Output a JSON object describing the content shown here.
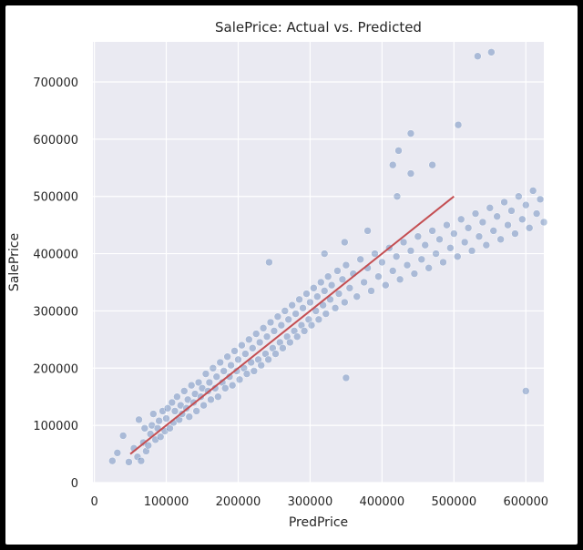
{
  "chart_data": {
    "type": "scatter",
    "title": "SalePrice: Actual vs. Predicted",
    "xlabel": "PredPrice",
    "ylabel": "SalePrice",
    "xlim": [
      -2000,
      625000
    ],
    "ylim": [
      0,
      770000
    ],
    "xticks": [
      0,
      100000,
      200000,
      300000,
      400000,
      500000,
      600000
    ],
    "yticks": [
      0,
      100000,
      200000,
      300000,
      400000,
      500000,
      600000,
      700000
    ],
    "xtick_labels": [
      "0",
      "100000",
      "200000",
      "300000",
      "400000",
      "500000",
      "600000"
    ],
    "ytick_labels": [
      "0",
      "100000",
      "200000",
      "300000",
      "400000",
      "500000",
      "600000",
      "700000"
    ],
    "grid": true,
    "background": "#eaeaf2",
    "point_color": "#4c72b0",
    "line_color": "#c44e52",
    "reference_line": {
      "x": [
        50000,
        500000
      ],
      "y": [
        50000,
        500000
      ]
    },
    "series": [
      {
        "points": [
          [
            25000,
            38000
          ],
          [
            32000,
            52000
          ],
          [
            40000,
            82000
          ],
          [
            48000,
            36000
          ],
          [
            55000,
            60000
          ],
          [
            60000,
            45000
          ],
          [
            62000,
            110000
          ],
          [
            65000,
            38000
          ],
          [
            68000,
            70000
          ],
          [
            70000,
            95000
          ],
          [
            72000,
            55000
          ],
          [
            75000,
            65000
          ],
          [
            78000,
            85000
          ],
          [
            80000,
            100000
          ],
          [
            82000,
            120000
          ],
          [
            85000,
            75000
          ],
          [
            88000,
            95000
          ],
          [
            90000,
            108000
          ],
          [
            92000,
            80000
          ],
          [
            95000,
            125000
          ],
          [
            98000,
            90000
          ],
          [
            100000,
            112000
          ],
          [
            102000,
            130000
          ],
          [
            105000,
            95000
          ],
          [
            108000,
            140000
          ],
          [
            110000,
            105000
          ],
          [
            112000,
            125000
          ],
          [
            115000,
            150000
          ],
          [
            118000,
            110000
          ],
          [
            120000,
            135000
          ],
          [
            122000,
            120000
          ],
          [
            125000,
            160000
          ],
          [
            128000,
            130000
          ],
          [
            130000,
            145000
          ],
          [
            132000,
            115000
          ],
          [
            135000,
            170000
          ],
          [
            138000,
            140000
          ],
          [
            140000,
            155000
          ],
          [
            142000,
            125000
          ],
          [
            145000,
            175000
          ],
          [
            148000,
            150000
          ],
          [
            150000,
            165000
          ],
          [
            152000,
            135000
          ],
          [
            155000,
            190000
          ],
          [
            158000,
            160000
          ],
          [
            160000,
            175000
          ],
          [
            162000,
            145000
          ],
          [
            165000,
            200000
          ],
          [
            168000,
            165000
          ],
          [
            170000,
            185000
          ],
          [
            172000,
            150000
          ],
          [
            175000,
            210000
          ],
          [
            178000,
            175000
          ],
          [
            180000,
            195000
          ],
          [
            182000,
            165000
          ],
          [
            185000,
            220000
          ],
          [
            188000,
            185000
          ],
          [
            190000,
            205000
          ],
          [
            192000,
            170000
          ],
          [
            195000,
            230000
          ],
          [
            198000,
            195000
          ],
          [
            200000,
            215000
          ],
          [
            202000,
            180000
          ],
          [
            205000,
            240000
          ],
          [
            208000,
            200000
          ],
          [
            210000,
            225000
          ],
          [
            212000,
            190000
          ],
          [
            215000,
            250000
          ],
          [
            218000,
            210000
          ],
          [
            220000,
            235000
          ],
          [
            222000,
            195000
          ],
          [
            225000,
            260000
          ],
          [
            228000,
            215000
          ],
          [
            230000,
            245000
          ],
          [
            232000,
            205000
          ],
          [
            235000,
            270000
          ],
          [
            238000,
            225000
          ],
          [
            240000,
            255000
          ],
          [
            242000,
            215000
          ],
          [
            245000,
            280000
          ],
          [
            248000,
            235000
          ],
          [
            250000,
            265000
          ],
          [
            252000,
            225000
          ],
          [
            255000,
            290000
          ],
          [
            258000,
            245000
          ],
          [
            260000,
            275000
          ],
          [
            262000,
            235000
          ],
          [
            265000,
            300000
          ],
          [
            268000,
            255000
          ],
          [
            270000,
            285000
          ],
          [
            272000,
            245000
          ],
          [
            275000,
            310000
          ],
          [
            278000,
            265000
          ],
          [
            280000,
            295000
          ],
          [
            282000,
            255000
          ],
          [
            285000,
            320000
          ],
          [
            288000,
            275000
          ],
          [
            290000,
            305000
          ],
          [
            292000,
            265000
          ],
          [
            295000,
            330000
          ],
          [
            298000,
            285000
          ],
          [
            300000,
            315000
          ],
          [
            302000,
            275000
          ],
          [
            305000,
            340000
          ],
          [
            308000,
            300000
          ],
          [
            310000,
            325000
          ],
          [
            312000,
            285000
          ],
          [
            315000,
            350000
          ],
          [
            318000,
            310000
          ],
          [
            320000,
            335000
          ],
          [
            322000,
            295000
          ],
          [
            325000,
            360000
          ],
          [
            328000,
            320000
          ],
          [
            330000,
            345000
          ],
          [
            335000,
            305000
          ],
          [
            338000,
            370000
          ],
          [
            340000,
            330000
          ],
          [
            345000,
            355000
          ],
          [
            348000,
            315000
          ],
          [
            350000,
            380000
          ],
          [
            355000,
            340000
          ],
          [
            360000,
            365000
          ],
          [
            365000,
            325000
          ],
          [
            370000,
            390000
          ],
          [
            375000,
            350000
          ],
          [
            380000,
            375000
          ],
          [
            385000,
            335000
          ],
          [
            390000,
            400000
          ],
          [
            395000,
            360000
          ],
          [
            400000,
            385000
          ],
          [
            405000,
            345000
          ],
          [
            410000,
            410000
          ],
          [
            415000,
            370000
          ],
          [
            420000,
            395000
          ],
          [
            425000,
            355000
          ],
          [
            430000,
            420000
          ],
          [
            435000,
            380000
          ],
          [
            440000,
            405000
          ],
          [
            445000,
            365000
          ],
          [
            450000,
            430000
          ],
          [
            455000,
            390000
          ],
          [
            460000,
            415000
          ],
          [
            465000,
            375000
          ],
          [
            470000,
            440000
          ],
          [
            475000,
            400000
          ],
          [
            480000,
            425000
          ],
          [
            485000,
            385000
          ],
          [
            490000,
            450000
          ],
          [
            495000,
            410000
          ],
          [
            500000,
            435000
          ],
          [
            505000,
            395000
          ],
          [
            510000,
            460000
          ],
          [
            515000,
            420000
          ],
          [
            520000,
            445000
          ],
          [
            525000,
            405000
          ],
          [
            530000,
            470000
          ],
          [
            535000,
            430000
          ],
          [
            540000,
            455000
          ],
          [
            545000,
            415000
          ],
          [
            550000,
            480000
          ],
          [
            555000,
            440000
          ],
          [
            560000,
            465000
          ],
          [
            565000,
            425000
          ],
          [
            570000,
            490000
          ],
          [
            575000,
            450000
          ],
          [
            580000,
            475000
          ],
          [
            585000,
            435000
          ],
          [
            590000,
            500000
          ],
          [
            595000,
            460000
          ],
          [
            600000,
            485000
          ],
          [
            605000,
            445000
          ],
          [
            610000,
            510000
          ],
          [
            615000,
            470000
          ],
          [
            620000,
            495000
          ],
          [
            625000,
            455000
          ],
          [
            350000,
            183000
          ],
          [
            600000,
            160000
          ],
          [
            421000,
            500000
          ],
          [
            423000,
            580000
          ],
          [
            440000,
            610000
          ],
          [
            506000,
            625000
          ],
          [
            533000,
            745000
          ],
          [
            552000,
            752000
          ],
          [
            243000,
            385000
          ],
          [
            348000,
            420000
          ],
          [
            320000,
            400000
          ],
          [
            380000,
            440000
          ],
          [
            470000,
            555000
          ],
          [
            415000,
            555000
          ],
          [
            440000,
            540000
          ]
        ]
      }
    ]
  }
}
